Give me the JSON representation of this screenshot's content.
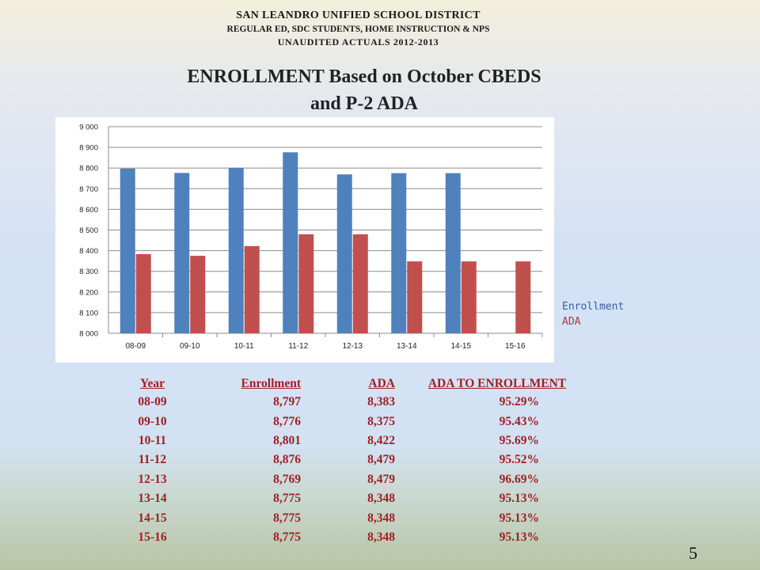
{
  "header": {
    "line1": "SAN LEANDRO UNIFIED SCHOOL DISTRICT",
    "line2": "REGULAR ED, SDC STUDENTS, HOME INSTRUCTION  & NPS",
    "line3": "UNAUDITED ACTUALS 2012-2013"
  },
  "chart_data": {
    "type": "bar",
    "title": "ENROLLMENT Based on October CBEDS and P-2 ADA",
    "title_line1": "ENROLLMENT Based on October CBEDS",
    "title_line2": "and P-2 ADA",
    "categories": [
      "08-09",
      "09-10",
      "10-11",
      "11-12",
      "12-13",
      "13-14",
      "14-15",
      "15-16"
    ],
    "series": [
      {
        "name": "Enrollment",
        "color": "#4f81bd",
        "values": [
          8797,
          8776,
          8801,
          8876,
          8769,
          8775,
          8775,
          null
        ]
      },
      {
        "name": "ADA",
        "color": "#c0504d",
        "values": [
          8383,
          8375,
          8422,
          8479,
          8479,
          8348,
          8348,
          8348
        ]
      }
    ],
    "ylim": [
      8000,
      9000
    ],
    "yticks": [
      8000,
      8100,
      8200,
      8300,
      8400,
      8500,
      8600,
      8700,
      8800,
      8900,
      9000
    ],
    "ytick_labels": [
      "8 000",
      "8 100",
      "8 200",
      "8 300",
      "8 400",
      "8 500",
      "8 600",
      "8 700",
      "8 800",
      "8 900",
      "9 000"
    ],
    "grid": true,
    "legend_position": "right"
  },
  "table": {
    "headers": {
      "year": "Year",
      "enrollment": "Enrollment",
      "ada": "ADA",
      "ratio": "ADA TO ENROLLMENT"
    },
    "rows": [
      {
        "year": "08-09",
        "enrollment": "8,797",
        "ada": "8,383",
        "ratio": "95.29%"
      },
      {
        "year": "09-10",
        "enrollment": "8,776",
        "ada": "8,375",
        "ratio": "95.43%"
      },
      {
        "year": "10-11",
        "enrollment": "8,801",
        "ada": "8,422",
        "ratio": "95.69%"
      },
      {
        "year": "11-12",
        "enrollment": "8,876",
        "ada": "8,479",
        "ratio": "95.52%"
      },
      {
        "year": "12-13",
        "enrollment": "8,769",
        "ada": "8,479",
        "ratio": "96.69%"
      },
      {
        "year": "13-14",
        "enrollment": "8,775",
        "ada": "8,348",
        "ratio": "95.13%"
      },
      {
        "year": "14-15",
        "enrollment": "8,775",
        "ada": "8,348",
        "ratio": "95.13%"
      },
      {
        "year": "15-16",
        "enrollment": "8,775",
        "ada": "8,348",
        "ratio": "95.13%"
      }
    ]
  },
  "page_number": "5"
}
